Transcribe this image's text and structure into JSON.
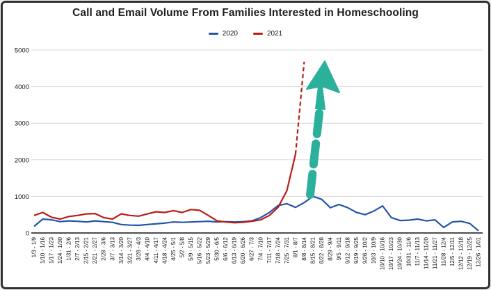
{
  "frame": {
    "border_color": "#313131",
    "background": "#ffffff"
  },
  "chart": {
    "title": "Call and Email Volume From Families Interested in Homeschooling"
  },
  "legend": {
    "position": "top-center",
    "items": [
      {
        "label": "2020",
        "color": "#2355a8"
      },
      {
        "label": "2021",
        "color": "#bc1b15"
      }
    ]
  },
  "chart_data": {
    "type": "line",
    "title": "Call and Email Volume From Families Interested in Homeschooling",
    "xlabel": "",
    "ylabel": "",
    "ylim": [
      0,
      5000
    ],
    "yticks": [
      0,
      1000,
      2000,
      3000,
      4000,
      5000
    ],
    "grid": "horizontal",
    "legend_position": "top-center",
    "x_labels": [
      "1/3 - 1/9",
      "1/10 - 1/16",
      "1/17 - 1/23",
      "1/24 - 1/30",
      "1/31 - 2/6",
      "2/7 - 2/13",
      "2/15 - 2/21",
      "2/21 - 2/27",
      "2/28 - 3/6",
      "3/7 - 3/13",
      "3/14 - 3/20",
      "3/21 - 3/27",
      "3/28 - 4/3",
      "4/4 - 4/10",
      "4/11 - 4/17",
      "4/18 - 4/24",
      "4/25 - 5/1",
      "5/2 - 5/8",
      "5/9 - 5/15",
      "5/16 - 5/22",
      "5/23 - 5/29",
      "5/30 - 6/5",
      "6/6 - 6/12",
      "6/13 - 6/19",
      "6/20 - 6/26",
      "6/27 - 7/3",
      "7/4 - 7/10",
      "7/11 - 7/17",
      "7/18 - 7/24",
      "7/25 - 7/31",
      "8/1 - 8/7",
      "8/8 - 8/14",
      "8/15 - 8/21",
      "8/22 - 8/28",
      "8/29 - 9/4",
      "9/5 - 9/11",
      "9/12 - 9/18",
      "9/19 - 9/25",
      "9/26 - 10/2",
      "10/3 - 10/9",
      "10/10 - 10/16",
      "10/17 - 10/23",
      "10/24 - 10/30",
      "10/31 - 11/6",
      "11/7 - 11/13",
      "11/14 - 11/20",
      "11/21 - 11/27",
      "11/28 - 12/4",
      "12/5 - 12/11",
      "12/12 - 12/18",
      "12/19 - 12/25",
      "12/26 - 1/01"
    ],
    "series": [
      {
        "name": "2020",
        "color": "#2355a8",
        "style": "solid",
        "values": [
          180,
          380,
          360,
          310,
          330,
          320,
          300,
          330,
          310,
          290,
          230,
          215,
          210,
          230,
          250,
          270,
          300,
          290,
          300,
          310,
          320,
          300,
          310,
          300,
          310,
          330,
          420,
          560,
          750,
          800,
          700,
          830,
          1000,
          920,
          690,
          780,
          690,
          560,
          500,
          600,
          740,
          420,
          340,
          350,
          380,
          330,
          360,
          150,
          300,
          320,
          260,
          60
        ]
      },
      {
        "name": "2021",
        "color": "#bc1b15",
        "style": "solid",
        "last_segment_dashed": true,
        "values": [
          480,
          560,
          430,
          380,
          450,
          480,
          520,
          530,
          420,
          380,
          520,
          480,
          460,
          520,
          580,
          560,
          610,
          560,
          640,
          620,
          480,
          330,
          300,
          280,
          290,
          320,
          360,
          480,
          700,
          1150,
          2150,
          4680
        ]
      }
    ],
    "annotation": {
      "type": "dashed-arrow-up",
      "color": "#2bb09b"
    }
  }
}
